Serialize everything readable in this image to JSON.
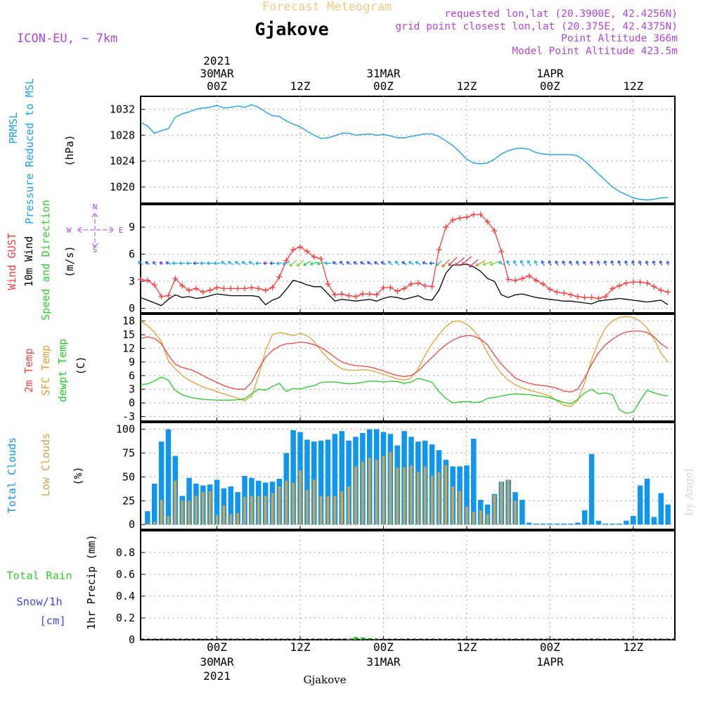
{
  "header": {
    "product": "Forecast Meteogram",
    "model": "ICON-EU, ~ 7km",
    "station": "Gjakove",
    "requested": "requested lon,lat (20.3900E, 42.4256N)",
    "gridpoint": "grid point closest lon,lat (20.375E, 42.4375N)",
    "point_alt": "Point Altitude 366m",
    "model_alt": "Model Point Altitude 423.5m",
    "footer_station": "Gjakove",
    "credit": "by Angel"
  },
  "colors": {
    "pressure": "#1ba3e8",
    "gust": "#ff3a3a",
    "wind": "#000000",
    "t2m": "#ee4444",
    "tsfc": "#e0a030",
    "dewpt": "#22cc22",
    "total_clouds": "#1096ee",
    "low_clouds": "#d4a24a",
    "rain": "#33cc33",
    "snow": "#4444ee",
    "violet": "#b046d6"
  },
  "time_axis": {
    "year": "2021",
    "ticks": [
      {
        "h": 0,
        "top": "00Z",
        "day": "30MAR",
        "year": "2021"
      },
      {
        "h": 12,
        "top": "12Z"
      },
      {
        "h": 24,
        "top": "00Z",
        "day": "31MAR"
      },
      {
        "h": 36,
        "top": "12Z"
      },
      {
        "h": 48,
        "top": "00Z",
        "day": "1APR"
      },
      {
        "h": 60,
        "top": "12Z"
      }
    ],
    "range": [
      -11,
      66
    ]
  },
  "panels": {
    "pressure": {
      "labels": [
        "PRMSL",
        "Pressure Reduced to MSL"
      ],
      "unit": "(hPa)",
      "ticks": [
        1020,
        1024,
        1028,
        1032
      ],
      "ylim": [
        1017.5,
        1034
      ]
    },
    "wind": {
      "labels": [
        "Wind GUST",
        "10m Wind",
        "Speed and Direction"
      ],
      "unit": "(m/s)",
      "ticks": [
        0,
        3,
        6,
        9
      ],
      "ylim": [
        -0.5,
        11.5
      ],
      "compass": {
        "n": "N",
        "s": "S",
        "w": "W",
        "e": "E"
      }
    },
    "temp": {
      "labels": [
        "2m Temp",
        "SFC Temp",
        "dewpt Temp"
      ],
      "unit": "(C)",
      "ticks": [
        -3,
        0,
        3,
        6,
        9,
        12,
        15,
        18
      ],
      "ylim": [
        -4,
        19.5
      ]
    },
    "clouds": {
      "labels": [
        "Total Clouds",
        "Low Clouds"
      ],
      "unit": "(%)",
      "ticks": [
        0,
        25,
        50,
        75,
        100
      ],
      "ylim": [
        -5,
        107
      ]
    },
    "precip": {
      "labels": [
        "Total  Rain",
        "Snow/1h",
        "[cm]"
      ],
      "axis_label": "1hr Precip (mm)",
      "ticks": [
        0,
        0.2,
        0.4,
        0.6,
        0.8
      ],
      "ylim": [
        0,
        1.0
      ]
    }
  },
  "chart_data": {
    "type": "line",
    "x_units": "hours from 2021-03-30 00Z",
    "pressure": {
      "x": [
        -11,
        -10,
        -9,
        -8,
        -7,
        -6,
        -5,
        -4,
        -3,
        -2,
        -1,
        0,
        1,
        2,
        3,
        4,
        5,
        6,
        7,
        8,
        9,
        10,
        11,
        12,
        13,
        14,
        15,
        16,
        17,
        18,
        19,
        20,
        21,
        22,
        23,
        24,
        25,
        26,
        27,
        28,
        29,
        30,
        31,
        32,
        33,
        34,
        35,
        36,
        37,
        38,
        39,
        40,
        41,
        42,
        43,
        44,
        45,
        46,
        47,
        48,
        49,
        50,
        51,
        52,
        53,
        54,
        55,
        56,
        57,
        58,
        59,
        60,
        61,
        62,
        63,
        64,
        65
      ],
      "values": [
        1030.0,
        1029.4,
        1028.3,
        1028.7,
        1029.0,
        1030.8,
        1031.3,
        1031.6,
        1032.0,
        1032.2,
        1032.3,
        1032.6,
        1032.2,
        1032.3,
        1032.5,
        1032.3,
        1032.7,
        1032.3,
        1031.6,
        1031.0,
        1030.9,
        1030.2,
        1029.7,
        1029.3,
        1028.6,
        1028.0,
        1027.5,
        1027.6,
        1027.9,
        1028.3,
        1028.3,
        1028.0,
        1028.1,
        1028.2,
        1028.0,
        1028.1,
        1027.9,
        1027.6,
        1027.6,
        1027.8,
        1028.0,
        1028.2,
        1028.2,
        1027.8,
        1027.1,
        1026.4,
        1025.4,
        1024.3,
        1023.7,
        1023.6,
        1023.7,
        1024.3,
        1025.1,
        1025.6,
        1025.9,
        1026.0,
        1025.8,
        1025.3,
        1025.1,
        1025.0,
        1025.0,
        1025.0,
        1025.0,
        1024.8,
        1024.0,
        1023.0,
        1022.0,
        1021.0,
        1020.0,
        1019.3,
        1018.8,
        1018.3,
        1018.1,
        1018.0,
        1018.1,
        1018.3,
        1018.4
      ]
    },
    "wind_speed": {
      "x": [
        -11,
        -10,
        -9,
        -8,
        -7,
        -6,
        -5,
        -4,
        -3,
        -2,
        -1,
        0,
        1,
        2,
        3,
        4,
        5,
        6,
        7,
        8,
        9,
        10,
        11,
        12,
        13,
        14,
        15,
        16,
        17,
        18,
        19,
        20,
        21,
        22,
        23,
        24,
        25,
        26,
        27,
        28,
        29,
        30,
        31,
        32,
        33,
        34,
        35,
        36,
        37,
        38,
        39,
        40,
        41,
        42,
        43,
        44,
        45,
        46,
        47,
        48,
        49,
        50,
        51,
        52,
        53,
        54,
        55,
        56,
        57,
        58,
        59,
        60,
        61,
        62,
        63,
        64,
        65
      ],
      "values": [
        1.2,
        0.9,
        0.6,
        0.3,
        1.0,
        1.5,
        1.2,
        1.3,
        1.1,
        1.2,
        1.4,
        1.6,
        1.5,
        1.4,
        1.4,
        1.4,
        1.4,
        1.3,
        0.4,
        0.9,
        1.2,
        2.1,
        3.1,
        2.9,
        2.6,
        2.4,
        2.4,
        1.6,
        0.8,
        1.0,
        0.9,
        0.8,
        0.9,
        1.0,
        0.8,
        1.1,
        1.3,
        1.2,
        1.0,
        1.2,
        1.4,
        1.0,
        0.9,
        2.0,
        3.9,
        4.8,
        4.8,
        4.9,
        4.6,
        4.1,
        3.3,
        3.0,
        1.5,
        1.2,
        1.5,
        1.6,
        1.4,
        1.2,
        1.1,
        1.0,
        0.9,
        0.8,
        0.8,
        0.7,
        0.6,
        0.5,
        0.8,
        0.9,
        1.0,
        1.1,
        1.0,
        0.9,
        0.8,
        0.7,
        0.8,
        0.9,
        0.4
      ]
    },
    "wind_gust": {
      "x": [
        -11,
        -10,
        -9,
        -8,
        -7,
        -6,
        -5,
        -4,
        -3,
        -2,
        -1,
        0,
        1,
        2,
        3,
        4,
        5,
        6,
        7,
        8,
        9,
        10,
        11,
        12,
        13,
        14,
        15,
        16,
        17,
        18,
        19,
        20,
        21,
        22,
        23,
        24,
        25,
        26,
        27,
        28,
        29,
        30,
        31,
        32,
        33,
        34,
        35,
        36,
        37,
        38,
        39,
        40,
        41,
        42,
        43,
        44,
        45,
        46,
        47,
        48,
        49,
        50,
        51,
        52,
        53,
        54,
        55,
        56,
        57,
        58,
        59,
        60,
        61,
        62,
        63,
        64,
        65
      ],
      "values": [
        3.2,
        3.1,
        2.6,
        1.3,
        1.4,
        3.3,
        2.5,
        2.0,
        2.2,
        1.8,
        2.0,
        2.3,
        2.2,
        2.2,
        2.2,
        2.2,
        2.3,
        2.2,
        2.0,
        2.3,
        3.5,
        5.3,
        6.5,
        6.8,
        6.3,
        5.7,
        5.5,
        2.7,
        1.5,
        1.6,
        1.4,
        1.3,
        1.6,
        1.6,
        1.5,
        2.3,
        2.3,
        1.9,
        2.2,
        2.7,
        2.8,
        2.5,
        2.4,
        6.5,
        9.0,
        9.8,
        10.0,
        10.1,
        10.4,
        10.4,
        9.6,
        8.6,
        6.3,
        3.2,
        3.1,
        3.3,
        3.6,
        3.1,
        2.7,
        2.1,
        1.8,
        1.7,
        1.5,
        1.3,
        1.2,
        1.2,
        1.1,
        1.3,
        2.2,
        2.5,
        2.8,
        2.9,
        2.9,
        2.8,
        2.4,
        2.0,
        1.8
      ]
    },
    "wind_arrow_dir_deg": [
      300,
      300,
      315,
      300,
      290,
      270,
      270,
      270,
      270,
      270,
      270,
      270,
      300,
      300,
      300,
      300,
      300,
      270,
      270,
      270,
      260,
      250,
      230,
      230,
      240,
      250,
      260,
      270,
      300,
      315,
      300,
      300,
      300,
      300,
      300,
      300,
      315,
      315,
      300,
      300,
      300,
      290,
      270,
      230,
      225,
      225,
      230,
      230,
      230,
      240,
      250,
      250,
      300,
      330,
      330,
      330,
      330,
      330,
      330,
      330,
      330,
      330,
      330,
      330,
      330,
      340,
      340,
      340,
      340,
      340,
      340,
      340,
      340,
      340,
      340,
      340,
      340
    ],
    "t2m": {
      "x": [
        -11,
        -10,
        -9,
        -8,
        -7,
        -6,
        -5,
        -4,
        -3,
        -2,
        -1,
        0,
        1,
        2,
        3,
        4,
        5,
        6,
        7,
        8,
        9,
        10,
        11,
        12,
        13,
        14,
        15,
        16,
        17,
        18,
        19,
        20,
        21,
        22,
        23,
        24,
        25,
        26,
        27,
        28,
        29,
        30,
        31,
        32,
        33,
        34,
        35,
        36,
        37,
        38,
        39,
        40,
        41,
        42,
        43,
        44,
        45,
        46,
        47,
        48,
        49,
        50,
        51,
        52,
        53,
        54,
        55,
        56,
        57,
        58,
        59,
        60,
        61,
        62,
        63,
        64,
        65
      ],
      "values": [
        14.2,
        14.5,
        14.2,
        13.0,
        10.5,
        8.5,
        7.8,
        7.4,
        6.8,
        6.0,
        5.2,
        4.5,
        3.8,
        3.3,
        3.0,
        3.0,
        4.5,
        7.5,
        10.0,
        11.5,
        12.5,
        13.0,
        13.1,
        13.4,
        13.2,
        12.8,
        12.2,
        11.2,
        10.0,
        9.0,
        8.5,
        8.2,
        8.1,
        7.9,
        7.5,
        7.0,
        6.5,
        6.0,
        5.8,
        6.0,
        7.0,
        8.5,
        10.0,
        11.5,
        12.8,
        13.8,
        14.5,
        14.8,
        14.7,
        14.0,
        12.8,
        10.5,
        8.5,
        7.0,
        5.5,
        4.8,
        4.3,
        4.0,
        3.8,
        3.6,
        3.2,
        2.6,
        2.4,
        3.0,
        5.5,
        8.5,
        11.0,
        12.8,
        14.0,
        15.0,
        15.6,
        15.8,
        15.8,
        15.5,
        14.5,
        13.0,
        12.0
      ]
    },
    "tsfc": {
      "x": [
        -11,
        -10,
        -9,
        -8,
        -7,
        -6,
        -5,
        -4,
        -3,
        -2,
        -1,
        0,
        1,
        2,
        3,
        4,
        5,
        6,
        7,
        8,
        9,
        10,
        11,
        12,
        13,
        14,
        15,
        16,
        17,
        18,
        19,
        20,
        21,
        22,
        23,
        24,
        25,
        26,
        27,
        28,
        29,
        30,
        31,
        32,
        33,
        34,
        35,
        36,
        37,
        38,
        39,
        40,
        41,
        42,
        43,
        44,
        45,
        46,
        47,
        48,
        49,
        50,
        51,
        52,
        53,
        54,
        55,
        56,
        57,
        58,
        59,
        60,
        61,
        62,
        63,
        64,
        65
      ],
      "values": [
        18.0,
        17.0,
        15.5,
        13.5,
        9.2,
        7.5,
        6.0,
        5.0,
        4.2,
        3.5,
        3.0,
        2.5,
        2.0,
        1.5,
        1.0,
        0.5,
        1.5,
        6.0,
        11.5,
        15.0,
        15.5,
        15.2,
        14.8,
        15.3,
        14.8,
        13.5,
        11.5,
        9.8,
        8.5,
        7.5,
        7.2,
        7.2,
        7.3,
        7.2,
        6.8,
        6.3,
        5.8,
        5.3,
        5.0,
        5.5,
        7.5,
        10.5,
        13.0,
        15.0,
        16.8,
        17.9,
        18.0,
        17.3,
        16.0,
        14.0,
        11.0,
        8.5,
        6.5,
        5.0,
        4.0,
        3.3,
        2.8,
        2.4,
        2.0,
        1.5,
        0.5,
        -0.5,
        -0.8,
        0.5,
        4.5,
        9.5,
        13.5,
        16.5,
        18.0,
        18.8,
        19.0,
        18.8,
        18.0,
        16.5,
        14.0,
        11.0,
        9.0
      ]
    },
    "dewpt": {
      "x": [
        -11,
        -10,
        -9,
        -8,
        -7,
        -6,
        -5,
        -4,
        -3,
        -2,
        -1,
        0,
        1,
        2,
        3,
        4,
        5,
        6,
        7,
        8,
        9,
        10,
        11,
        12,
        13,
        14,
        15,
        16,
        17,
        18,
        19,
        20,
        21,
        22,
        23,
        24,
        25,
        26,
        27,
        28,
        29,
        30,
        31,
        32,
        33,
        34,
        35,
        36,
        37,
        38,
        39,
        40,
        41,
        42,
        43,
        44,
        45,
        46,
        47,
        48,
        49,
        50,
        51,
        52,
        53,
        54,
        55,
        56,
        57,
        58,
        59,
        60,
        61,
        62,
        63,
        64,
        65
      ],
      "values": [
        4.0,
        4.2,
        4.8,
        5.7,
        5.0,
        2.7,
        1.8,
        1.3,
        1.0,
        0.8,
        0.7,
        0.6,
        0.6,
        0.6,
        0.7,
        0.9,
        2.0,
        3.0,
        2.8,
        3.6,
        4.3,
        2.5,
        3.2,
        3.0,
        3.5,
        3.8,
        4.5,
        4.6,
        4.6,
        4.4,
        4.2,
        4.3,
        4.5,
        4.8,
        4.8,
        4.6,
        4.8,
        4.7,
        4.3,
        4.6,
        5.4,
        5.0,
        4.5,
        2.5,
        1.0,
        0.0,
        0.2,
        0.3,
        0.1,
        0.2,
        1.0,
        1.2,
        1.5,
        1.8,
        2.0,
        1.9,
        1.8,
        1.6,
        1.4,
        1.1,
        0.6,
        0.1,
        -0.2,
        0.8,
        2.2,
        3.0,
        2.0,
        2.2,
        1.8,
        -1.5,
        -2.3,
        -2.0,
        0.5,
        2.8,
        2.2,
        1.8,
        1.5
      ]
    },
    "total_clouds": {
      "x": [
        -10,
        -9,
        -8,
        -7,
        -6,
        -5,
        -4,
        -3,
        -2,
        -1,
        0,
        1,
        2,
        3,
        4,
        5,
        6,
        7,
        8,
        9,
        10,
        11,
        12,
        13,
        14,
        15,
        16,
        17,
        18,
        19,
        20,
        21,
        22,
        23,
        24,
        25,
        26,
        27,
        28,
        29,
        30,
        31,
        32,
        33,
        34,
        35,
        36,
        37,
        38,
        39,
        40,
        41,
        42,
        43,
        44,
        45,
        46,
        47,
        48,
        49,
        50,
        51,
        52,
        53,
        54,
        55,
        56,
        57,
        58,
        59,
        60,
        61,
        62,
        63,
        64,
        65
      ],
      "values": [
        14,
        43,
        87,
        100,
        72,
        30,
        49,
        43,
        41,
        42,
        47,
        38,
        40,
        34,
        51,
        49,
        46,
        44,
        45,
        48,
        75,
        99,
        97,
        89,
        87,
        88,
        89,
        95,
        98,
        88,
        92,
        96,
        100,
        100,
        97,
        95,
        83,
        98,
        92,
        87,
        88,
        84,
        78,
        68,
        61,
        61,
        62,
        90,
        26,
        21,
        32,
        45,
        47,
        34,
        26,
        2,
        1,
        1,
        1,
        1,
        1,
        1,
        2,
        15,
        74,
        4,
        1,
        1,
        1,
        4,
        9,
        41,
        48,
        8,
        33,
        21
      ]
    },
    "low_clouds": {
      "x": [
        -10,
        -9,
        -8,
        -7,
        -6,
        -5,
        -4,
        -3,
        -2,
        -1,
        0,
        1,
        2,
        3,
        4,
        5,
        6,
        7,
        8,
        9,
        10,
        11,
        12,
        13,
        14,
        15,
        16,
        17,
        18,
        19,
        20,
        21,
        22,
        23,
        24,
        25,
        26,
        27,
        28,
        29,
        30,
        31,
        32,
        33,
        34,
        35,
        36,
        37,
        38,
        39,
        40,
        41,
        42,
        43,
        44,
        45,
        46,
        47,
        48,
        49,
        50,
        51,
        52,
        53,
        54,
        55,
        56,
        57,
        58,
        59,
        60,
        61,
        62,
        63,
        64,
        65
      ],
      "values": [
        1,
        3,
        26,
        9,
        46,
        25,
        25,
        30,
        34,
        35,
        10,
        20,
        11,
        12,
        29,
        30,
        30,
        30,
        33,
        40,
        46,
        44,
        57,
        36,
        47,
        30,
        30,
        30,
        35,
        40,
        61,
        66,
        70,
        68,
        72,
        76,
        60,
        60,
        62,
        55,
        61,
        51,
        55,
        62,
        40,
        35,
        19,
        13,
        15,
        11,
        31,
        45,
        47,
        25,
        0,
        0,
        0,
        0,
        0,
        0,
        0,
        0,
        0,
        0,
        0,
        0,
        0,
        0,
        0,
        0,
        0,
        0,
        0,
        0,
        0,
        0
      ]
    },
    "precip_rain": {
      "x": [
        19,
        20,
        21,
        22,
        23
      ],
      "values": [
        0.005,
        0.025,
        0.022,
        0.015,
        0.01
      ]
    }
  }
}
